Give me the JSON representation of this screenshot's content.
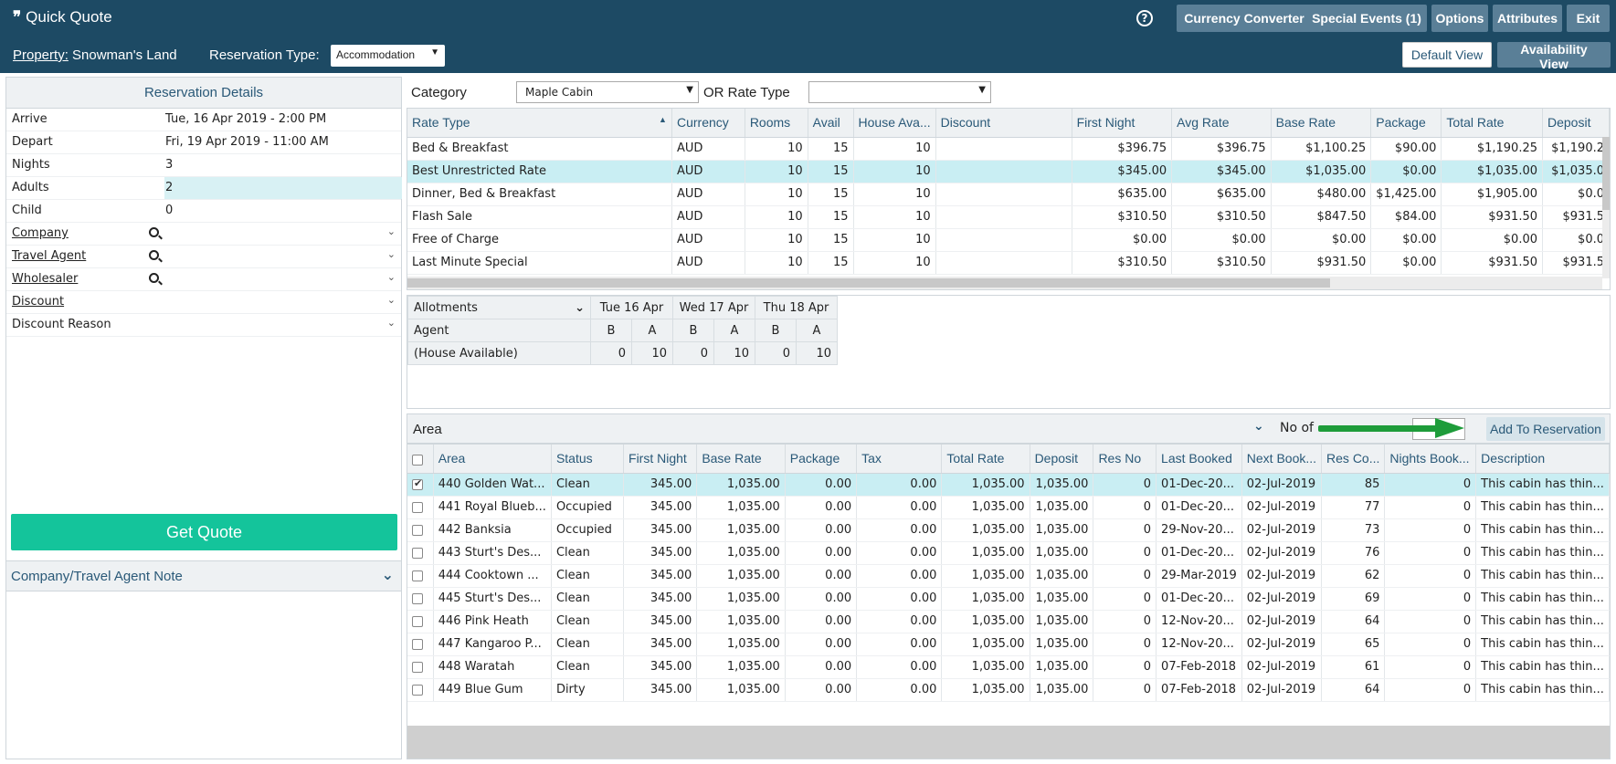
{
  "header": {
    "title": "Quick Quote",
    "help_symbol": "?",
    "buttons": [
      "Currency Converter",
      "Special Events (1)",
      "Options",
      "Attributes",
      "Exit"
    ]
  },
  "subbar": {
    "property_label": "Property:",
    "property_value": "Snowman's Land",
    "res_type_label": "Reservation Type:",
    "res_type_value": "Accommodation",
    "default_view": "Default View",
    "availability_view": "Availability View"
  },
  "details": {
    "heading": "Reservation Details",
    "rows": [
      {
        "label": "Arrive",
        "value": "Tue, 16 Apr 2019 - 2:00 PM"
      },
      {
        "label": "Depart",
        "value": "Fri, 19 Apr 2019 - 11:00 AM"
      },
      {
        "label": "Nights",
        "value": "3"
      },
      {
        "label": "Adults",
        "value": "2"
      },
      {
        "label": "Child",
        "value": "0"
      }
    ],
    "lookups": [
      "Company",
      "Travel Agent",
      "Wholesaler"
    ],
    "discount_label": "Discount",
    "discount_reason_label": "Discount Reason",
    "get_quote": "Get Quote",
    "note_heading": "Company/Travel Agent Note"
  },
  "category": {
    "label": "Category",
    "value": "Maple Cabin",
    "rate_type_label": "OR Rate Type",
    "rate_type_value": ""
  },
  "rates": {
    "columns": [
      "Rate Type",
      "Currency",
      "Rooms",
      "Avail",
      "House Ava...",
      "Discount",
      "First Night",
      "Avg Rate",
      "Base Rate",
      "Package",
      "Total Rate",
      "Deposit"
    ],
    "rows": [
      [
        "Bed & Breakfast",
        "AUD",
        "10",
        "15",
        "10",
        "",
        "$396.75",
        "$396.75",
        "$1,100.25",
        "$90.00",
        "$1,190.25",
        "$1,190.2"
      ],
      [
        "Best Unrestricted Rate",
        "AUD",
        "10",
        "15",
        "10",
        "",
        "$345.00",
        "$345.00",
        "$1,035.00",
        "$0.00",
        "$1,035.00",
        "$1,035.0"
      ],
      [
        "Dinner, Bed & Breakfast",
        "AUD",
        "10",
        "15",
        "10",
        "",
        "$635.00",
        "$635.00",
        "$480.00",
        "$1,425.00",
        "$1,905.00",
        "$0.0"
      ],
      [
        "Flash Sale",
        "AUD",
        "10",
        "15",
        "10",
        "",
        "$310.50",
        "$310.50",
        "$847.50",
        "$84.00",
        "$931.50",
        "$931.5"
      ],
      [
        "Free of Charge",
        "AUD",
        "10",
        "15",
        "10",
        "",
        "$0.00",
        "$0.00",
        "$0.00",
        "$0.00",
        "$0.00",
        "$0.0"
      ],
      [
        "Last Minute Special",
        "AUD",
        "10",
        "15",
        "10",
        "",
        "$310.50",
        "$310.50",
        "$931.50",
        "$0.00",
        "$931.50",
        "$931.5"
      ]
    ]
  },
  "allotments": {
    "select_value": "Allotments",
    "days": [
      "Tue 16 Apr",
      "Wed 17 Apr",
      "Thu 18 Apr"
    ],
    "rows": [
      {
        "label": "Agent",
        "cells": [
          "B",
          "A",
          "B",
          "A",
          "B",
          "A"
        ]
      },
      {
        "label": "(House Available)",
        "cells": [
          "0",
          "10",
          "0",
          "10",
          "0",
          "10"
        ]
      }
    ]
  },
  "area_header": {
    "title": "Area",
    "no_of_label": "No of",
    "add_button": "Add To Reservation"
  },
  "areas": {
    "columns": [
      "Area",
      "Status",
      "First Night",
      "Base Rate",
      "Package",
      "Tax",
      "Total Rate",
      "Deposit",
      "Res No",
      "Last Booked",
      "Next Book...",
      "Res Co...",
      "Nights Book...",
      "Description"
    ],
    "rows": [
      [
        "440 Golden Wat...",
        "Clean",
        "345.00",
        "1,035.00",
        "0.00",
        "0.00",
        "1,035.00",
        "1,035.00",
        "0",
        "01-Dec-20...",
        "02-Jul-2019",
        "85",
        "0",
        "This cabin has thin..."
      ],
      [
        "441 Royal Blueb...",
        "Occupied",
        "345.00",
        "1,035.00",
        "0.00",
        "0.00",
        "1,035.00",
        "1,035.00",
        "0",
        "01-Dec-20...",
        "02-Jul-2019",
        "77",
        "0",
        "This cabin has thin..."
      ],
      [
        "442 Banksia",
        "Occupied",
        "345.00",
        "1,035.00",
        "0.00",
        "0.00",
        "1,035.00",
        "1,035.00",
        "0",
        "29-Nov-20...",
        "02-Jul-2019",
        "73",
        "0",
        "This cabin has thin..."
      ],
      [
        "443 Sturt's Des...",
        "Clean",
        "345.00",
        "1,035.00",
        "0.00",
        "0.00",
        "1,035.00",
        "1,035.00",
        "0",
        "01-Dec-20...",
        "02-Jul-2019",
        "76",
        "0",
        "This cabin has thin..."
      ],
      [
        "444 Cooktown ...",
        "Clean",
        "345.00",
        "1,035.00",
        "0.00",
        "0.00",
        "1,035.00",
        "1,035.00",
        "0",
        "29-Mar-2019",
        "02-Jul-2019",
        "62",
        "0",
        "This cabin has thin..."
      ],
      [
        "445 Sturt's Des...",
        "Clean",
        "345.00",
        "1,035.00",
        "0.00",
        "0.00",
        "1,035.00",
        "1,035.00",
        "0",
        "01-Dec-20...",
        "02-Jul-2019",
        "69",
        "0",
        "This cabin has thin..."
      ],
      [
        "446 Pink Heath",
        "Clean",
        "345.00",
        "1,035.00",
        "0.00",
        "0.00",
        "1,035.00",
        "1,035.00",
        "0",
        "12-Nov-20...",
        "02-Jul-2019",
        "64",
        "0",
        "This cabin has thin..."
      ],
      [
        "447 Kangaroo P...",
        "Clean",
        "345.00",
        "1,035.00",
        "0.00",
        "0.00",
        "1,035.00",
        "1,035.00",
        "0",
        "12-Nov-20...",
        "02-Jul-2019",
        "65",
        "0",
        "This cabin has thin..."
      ],
      [
        "448 Waratah",
        "Clean",
        "345.00",
        "1,035.00",
        "0.00",
        "0.00",
        "1,035.00",
        "1,035.00",
        "0",
        "07-Feb-2018",
        "02-Jul-2019",
        "61",
        "0",
        "This cabin has thin..."
      ],
      [
        "449 Blue Gum",
        "Dirty",
        "345.00",
        "1,035.00",
        "0.00",
        "0.00",
        "1,035.00",
        "1,035.00",
        "0",
        "07-Feb-2018",
        "02-Jul-2019",
        "64",
        "0",
        "This cabin has thin..."
      ]
    ]
  },
  "colors": {
    "header_bg": "#1d4a64",
    "get_quote_bg": "#14c49b",
    "selected_row_bg": "#c9eef3",
    "arrow": "#1e9c3a"
  },
  "icons": [
    "quote-icon",
    "help-icon",
    "search-icon",
    "chevron-down-icon",
    "arrow-right-icon"
  ]
}
